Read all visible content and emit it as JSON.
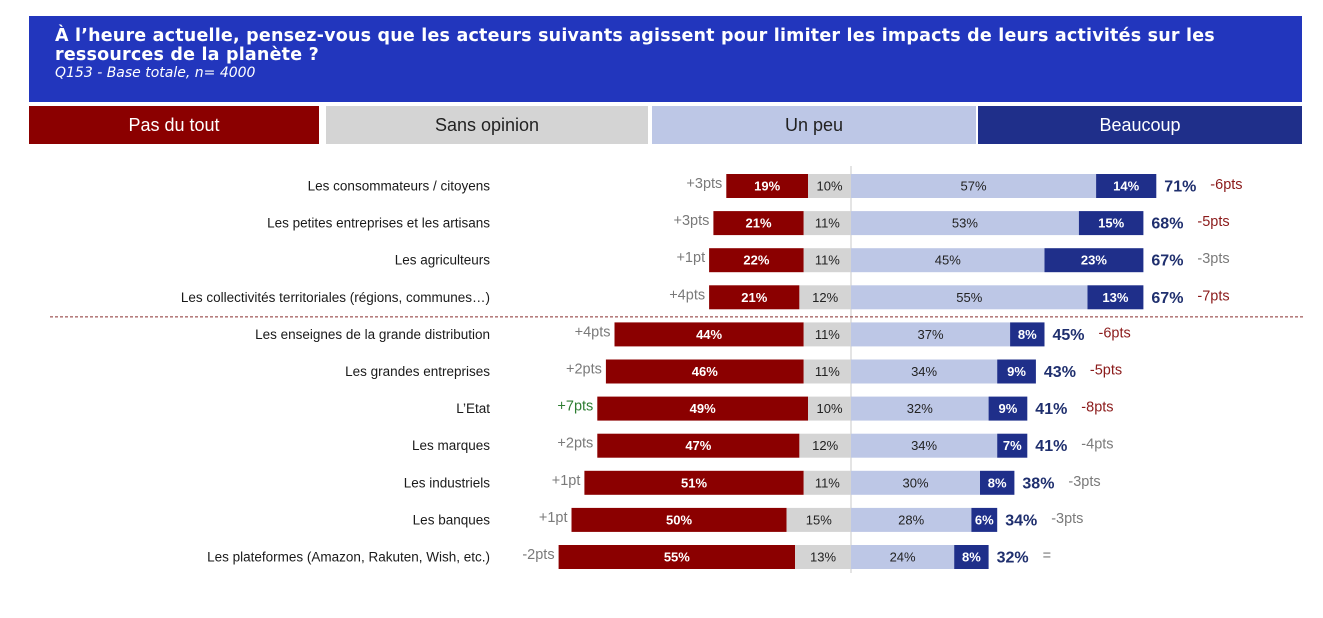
{
  "title": "À l’heure actuelle, pensez-vous que les acteurs suivants agissent pour limiter les impacts de leurs activités sur les ressources de la planète ?",
  "subtitle": "Q153 - Base totale, n= 4000",
  "colors": {
    "header_bg": "#2236bd",
    "pas_du_tout": "#8b0000",
    "sans_opinion": "#d4d4d4",
    "un_peu": "#bdc7e6",
    "beaucoup": "#1f2f8a",
    "evolution_up_green": "#2e7d32",
    "evolution_down_red": "#8b1a1a",
    "neutral_grey": "#7a7a7a"
  },
  "legend": [
    {
      "key": "pas_du_tout",
      "label": "Pas du tout"
    },
    {
      "key": "sans_opinion",
      "label": "Sans opinion"
    },
    {
      "key": "un_peu",
      "label": "Un peu"
    },
    {
      "key": "beaucoup",
      "label": "Beaucoup"
    }
  ],
  "chart_data": {
    "type": "bar",
    "stacked": true,
    "diverging": true,
    "categories": [
      "Les consommateurs / citoyens",
      "Les petites entreprises et les artisans",
      "Les agriculteurs",
      "Les collectivités territoriales (régions, communes…)",
      "Les enseignes de la grande distribution",
      "Les grandes entreprises",
      "L’Etat",
      "Les marques",
      "Les industriels",
      "Les banques",
      "Les plateformes (Amazon, Rakuten, Wish, etc.)"
    ],
    "series": [
      {
        "name": "Pas du tout",
        "values": [
          19,
          21,
          22,
          21,
          44,
          46,
          49,
          47,
          51,
          50,
          55
        ]
      },
      {
        "name": "Sans opinion",
        "values": [
          10,
          11,
          11,
          12,
          11,
          11,
          10,
          12,
          11,
          15,
          13
        ]
      },
      {
        "name": "Un peu",
        "values": [
          57,
          53,
          45,
          55,
          37,
          34,
          32,
          34,
          30,
          28,
          24
        ]
      },
      {
        "name": "Beaucoup",
        "values": [
          14,
          15,
          23,
          13,
          8,
          9,
          9,
          7,
          8,
          6,
          8
        ]
      }
    ],
    "left_evolution": [
      "+3pts",
      "+3pts",
      "+1pt",
      "+4pts",
      "+4pts",
      "+2pts",
      "+7pts",
      "+2pts",
      "+1pt",
      "+1pt",
      "-2pts"
    ],
    "left_evolution_highlight": [
      false,
      false,
      false,
      false,
      false,
      false,
      true,
      false,
      false,
      false,
      false
    ],
    "total_agit": [
      "71%",
      "68%",
      "67%",
      "67%",
      "45%",
      "43%",
      "41%",
      "41%",
      "38%",
      "34%",
      "32%"
    ],
    "right_evolution": [
      "-6pts",
      "-5pts",
      "-3pts",
      "-7pts",
      "-6pts",
      "-5pts",
      "-8pts",
      "-4pts",
      "-3pts",
      "-3pts",
      "="
    ],
    "right_evolution_significant": [
      true,
      true,
      false,
      true,
      true,
      true,
      true,
      false,
      false,
      false,
      false
    ],
    "group_separator_after_index": 3
  }
}
